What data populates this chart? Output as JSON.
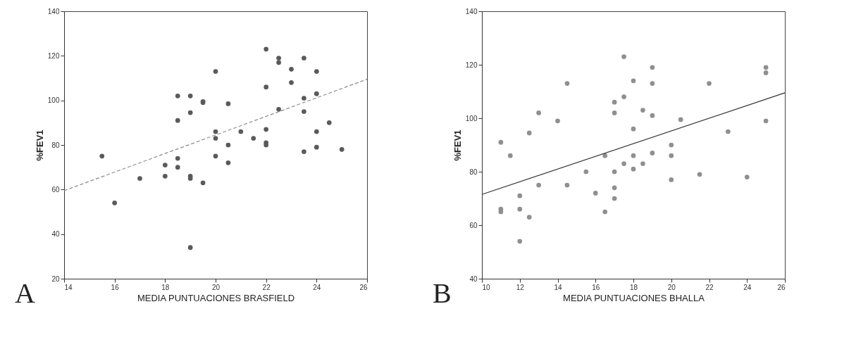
{
  "chart_data": [
    {
      "type": "scatter",
      "xlabel": "MEDIA PUNTUACIONES BRASFIELD",
      "ylabel": "%FEV1",
      "annotations": [
        "A"
      ],
      "xlim": [
        14,
        26
      ],
      "ylim": [
        20,
        140
      ],
      "xticks": [
        14,
        16,
        18,
        20,
        22,
        24,
        26
      ],
      "yticks": [
        20,
        40,
        60,
        80,
        100,
        120,
        140
      ],
      "grid": false,
      "series": [
        {
          "marker": "circle",
          "color": "#5a5a5a",
          "x": [
            15.5,
            16,
            17,
            18,
            18,
            18.5,
            18.5,
            18.5,
            18.5,
            19,
            19,
            19,
            19,
            19,
            19.5,
            19.5,
            19.5,
            20,
            20,
            20,
            20,
            20.5,
            20.5,
            20.5,
            21,
            21.5,
            22,
            22,
            22,
            22,
            22,
            22.5,
            22.5,
            22.5,
            23,
            23,
            23.5,
            23.5,
            23.5,
            23.5,
            24,
            24,
            24,
            24,
            24.5,
            25
          ],
          "values": [
            75,
            54,
            65,
            71,
            66,
            102,
            91,
            74,
            70,
            102,
            94.5,
            66,
            65,
            34,
            99.5,
            99,
            63,
            113,
            86,
            83,
            75,
            98.5,
            80,
            72,
            86,
            83,
            123,
            106,
            87,
            81,
            80,
            119,
            117,
            96,
            114,
            108,
            119,
            101,
            95,
            77,
            113,
            103,
            86,
            79,
            90,
            78
          ]
        },
        {
          "type": "line",
          "marker": "none",
          "color": "#8c8c8c",
          "line_style": "dashed",
          "x": [
            14,
            26
          ],
          "values": [
            59.5,
            109.5
          ]
        }
      ]
    },
    {
      "type": "scatter",
      "xlabel": "MEDIA PUNTUACIONES BHALLA",
      "ylabel": "%FEV1",
      "annotations": [
        "B"
      ],
      "xlim": [
        10,
        26
      ],
      "ylim": [
        40,
        140
      ],
      "xticks": [
        10,
        12,
        14,
        16,
        18,
        20,
        22,
        24,
        26
      ],
      "yticks": [
        40,
        60,
        80,
        100,
        120,
        140
      ],
      "grid": false,
      "series": [
        {
          "marker": "circle",
          "color": "#8f8f8f",
          "x": [
            11,
            11,
            11,
            11.5,
            12,
            12,
            12,
            12.5,
            12.5,
            13,
            13,
            14,
            14.5,
            14.5,
            15.5,
            16,
            16.5,
            16.5,
            17,
            17,
            17,
            17,
            17,
            17.5,
            17.5,
            17.5,
            18,
            18,
            18,
            18,
            18.5,
            18.5,
            19,
            19,
            19,
            19,
            20,
            20,
            20,
            20.5,
            21.5,
            22,
            23,
            24,
            25,
            25,
            25
          ],
          "values": [
            91,
            66,
            65,
            86,
            71,
            66,
            54,
            94.5,
            63,
            102,
            75,
            99,
            113,
            75,
            80,
            72,
            86,
            65,
            106,
            102,
            80,
            74,
            70,
            123,
            108,
            83,
            114,
            96,
            86,
            81,
            103,
            83,
            119,
            113,
            101,
            87,
            90,
            86,
            77,
            99.5,
            79,
            113,
            95,
            78,
            119,
            117,
            99
          ]
        },
        {
          "type": "line",
          "marker": "none",
          "color": "#333333",
          "line_style": "solid",
          "x": [
            10,
            26
          ],
          "values": [
            71.5,
            109.5
          ]
        }
      ]
    }
  ]
}
